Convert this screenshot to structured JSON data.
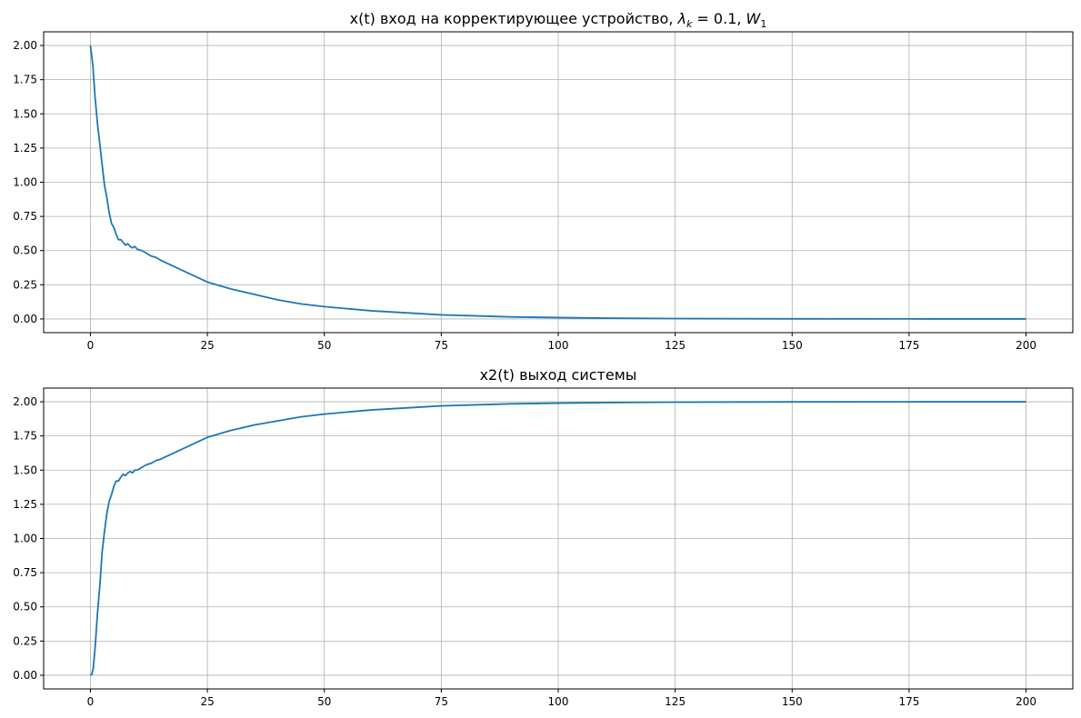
{
  "chart_data": [
    {
      "type": "line",
      "title": "x(t) вход на корректирующее устройство, ",
      "title_math": {
        "lambda": "λ",
        "lambda_sub": "k",
        "mid": " = 0.1, ",
        "w": "W",
        "w_sub": "1"
      },
      "xlabel": "",
      "ylabel": "",
      "xlim": [
        -10,
        210
      ],
      "ylim": [
        -0.1,
        2.1
      ],
      "x_ticks": [
        0,
        25,
        50,
        75,
        100,
        125,
        150,
        175,
        200
      ],
      "x_tick_labels": [
        "0",
        "25",
        "50",
        "75",
        "100",
        "125",
        "150",
        "175",
        "200"
      ],
      "y_ticks": [
        0,
        0.25,
        0.5,
        0.75,
        1.0,
        1.25,
        1.5,
        1.75,
        2.0
      ],
      "y_tick_labels": [
        "0.00",
        "0.25",
        "0.50",
        "0.75",
        "1.00",
        "1.25",
        "1.50",
        "1.75",
        "2.00"
      ],
      "grid": true,
      "series": [
        {
          "color": "#1f77b4",
          "x": [
            0,
            0.5,
            1,
            1.5,
            2,
            2.5,
            3,
            3.5,
            4,
            4.5,
            5,
            5.5,
            6,
            6.5,
            7,
            7.5,
            8,
            8.5,
            9,
            9.5,
            10,
            11,
            12,
            13,
            14,
            15,
            17.5,
            20,
            22.5,
            25,
            30,
            35,
            40,
            45,
            50,
            60,
            70,
            75,
            80,
            90,
            100,
            110,
            125,
            150,
            175,
            200
          ],
          "y": [
            2.0,
            1.86,
            1.62,
            1.43,
            1.28,
            1.13,
            0.98,
            0.89,
            0.78,
            0.7,
            0.67,
            0.62,
            0.58,
            0.58,
            0.56,
            0.54,
            0.55,
            0.53,
            0.52,
            0.53,
            0.51,
            0.5,
            0.48,
            0.46,
            0.45,
            0.43,
            0.39,
            0.35,
            0.31,
            0.27,
            0.22,
            0.18,
            0.14,
            0.11,
            0.09,
            0.06,
            0.04,
            0.03,
            0.025,
            0.015,
            0.01,
            0.006,
            0.003,
            0.001,
            0.0003,
            0.0001
          ]
        }
      ]
    },
    {
      "type": "line",
      "title": "x2(t) выход системы",
      "xlabel": "",
      "ylabel": "",
      "xlim": [
        -10,
        210
      ],
      "ylim": [
        -0.1,
        2.1
      ],
      "x_ticks": [
        0,
        25,
        50,
        75,
        100,
        125,
        150,
        175,
        200
      ],
      "x_tick_labels": [
        "0",
        "25",
        "50",
        "75",
        "100",
        "125",
        "150",
        "175",
        "200"
      ],
      "y_ticks": [
        0,
        0.25,
        0.5,
        0.75,
        1.0,
        1.25,
        1.5,
        1.75,
        2.0
      ],
      "y_tick_labels": [
        "0.00",
        "0.25",
        "0.50",
        "0.75",
        "1.00",
        "1.25",
        "1.50",
        "1.75",
        "2.00"
      ],
      "grid": true,
      "series": [
        {
          "color": "#1f77b4",
          "x": [
            0,
            0.3,
            0.6,
            1,
            1.5,
            2,
            2.5,
            3,
            3.5,
            4,
            4.5,
            5,
            5.5,
            6,
            6.5,
            7,
            7.5,
            8,
            8.5,
            9,
            9.5,
            10,
            11,
            12,
            13,
            14,
            15,
            17.5,
            20,
            22.5,
            25,
            30,
            35,
            40,
            45,
            50,
            60,
            70,
            75,
            80,
            90,
            100,
            110,
            125,
            150,
            175,
            200
          ],
          "y": [
            0.0,
            0.005,
            0.05,
            0.2,
            0.45,
            0.65,
            0.9,
            1.05,
            1.18,
            1.27,
            1.32,
            1.38,
            1.42,
            1.42,
            1.45,
            1.47,
            1.46,
            1.48,
            1.49,
            1.48,
            1.5,
            1.5,
            1.52,
            1.54,
            1.55,
            1.57,
            1.58,
            1.62,
            1.66,
            1.7,
            1.74,
            1.79,
            1.83,
            1.86,
            1.89,
            1.91,
            1.94,
            1.96,
            1.97,
            1.975,
            1.985,
            1.99,
            1.994,
            1.997,
            1.999,
            1.9997,
            1.9999
          ]
        }
      ]
    }
  ]
}
